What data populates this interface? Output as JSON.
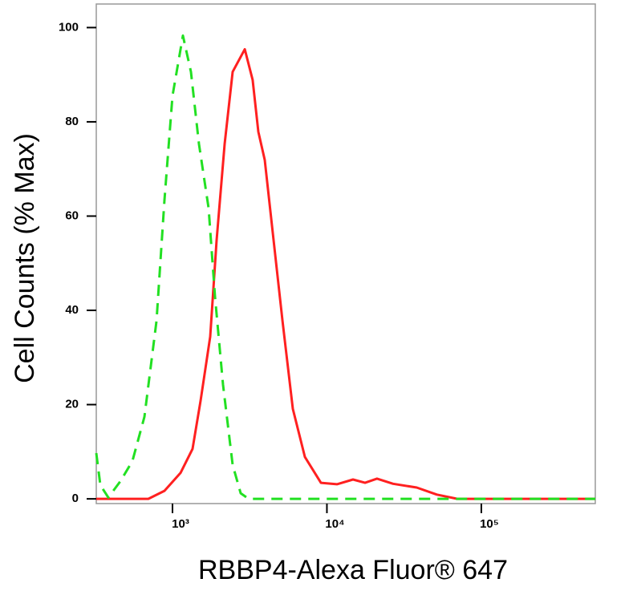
{
  "chart_data": {
    "type": "line",
    "x_label": "RBBP4-Alexa Fluor® 647",
    "y_label": "Cell Counts (% Max)",
    "xscale": "log",
    "xlim": [
      321,
      547000
    ],
    "ylim": [
      -1,
      105
    ],
    "xticks": [
      {
        "value": 1000,
        "label": "10³"
      },
      {
        "value": 10000,
        "label": "10⁴"
      },
      {
        "value": 100000,
        "label": "10⁵"
      }
    ],
    "yticks": [
      0,
      20,
      40,
      60,
      80,
      100
    ],
    "series": [
      {
        "color": "#ff2020",
        "style": "solid",
        "x": [
          321,
          380,
          698,
          887,
          1127,
          1348,
          1520,
          1754,
          1931,
          2177,
          2454,
          2937,
          3306,
          3597,
          3958,
          4454,
          5154,
          6017,
          7202,
          9146,
          11620,
          14760,
          17650,
          21110,
          26810,
          38150,
          51530,
          69980,
          100000,
          547000
        ],
        "values": [
          0,
          0,
          0,
          1.7,
          5.5,
          10.6,
          20.8,
          34.4,
          54.9,
          75.3,
          90.6,
          95.4,
          88.9,
          77.9,
          71.9,
          56.6,
          37.8,
          19.1,
          8.9,
          3.4,
          3.1,
          4.1,
          3.4,
          4.3,
          3.2,
          2.4,
          0.9,
          0,
          0,
          0
        ]
      },
      {
        "color": "#22e022",
        "style": "dashed",
        "x": [
          321,
          341,
          384,
          459,
          550,
          658,
          788,
          887,
          1000,
          1168,
          1317,
          1484,
          1713,
          1885,
          2124,
          2454,
          2764,
          3113,
          100000,
          547000
        ],
        "values": [
          9.7,
          2.9,
          0.3,
          3.7,
          8,
          17.4,
          37.8,
          63.4,
          85.5,
          98.3,
          90.6,
          75.3,
          61.7,
          42.9,
          24.2,
          7.2,
          1.2,
          0,
          0,
          0
        ]
      }
    ]
  }
}
